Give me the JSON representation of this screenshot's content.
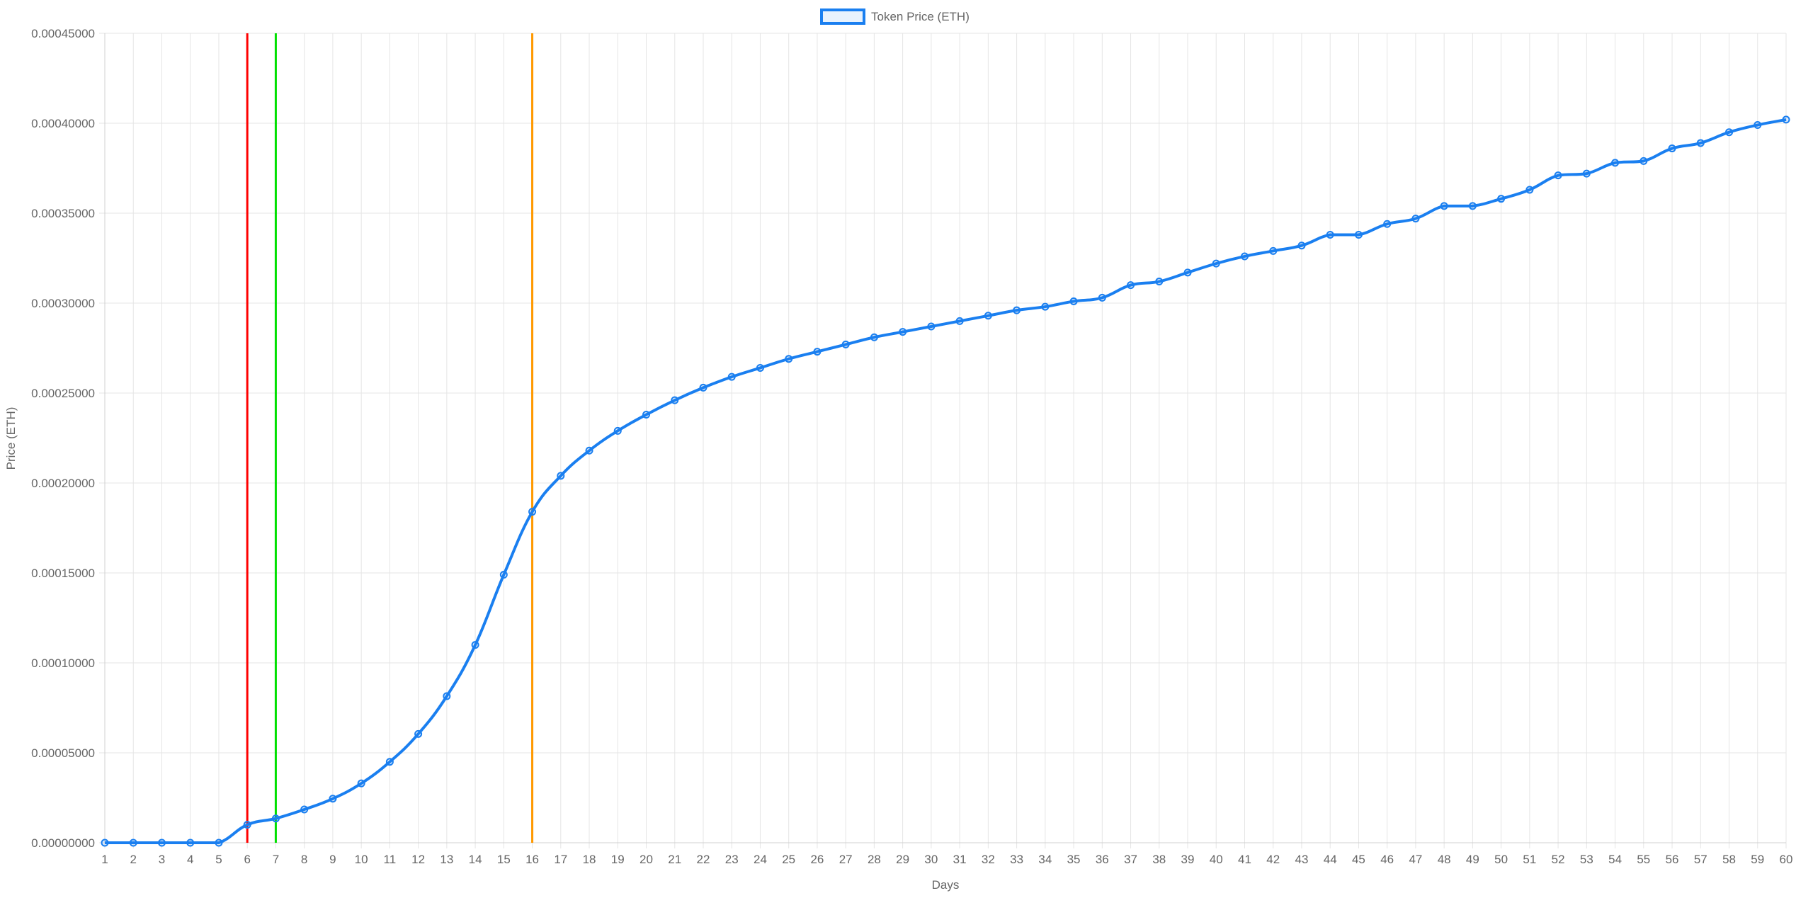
{
  "chart_data": {
    "type": "line",
    "title": "",
    "xlabel": "Days",
    "ylabel": "Price (ETH)",
    "ylim": [
      0,
      0.00045
    ],
    "y_ticks": [
      "0.00000000",
      "0.00005000",
      "0.00010000",
      "0.00015000",
      "0.00020000",
      "0.00025000",
      "0.00030000",
      "0.00035000",
      "0.00040000",
      "0.00045000"
    ],
    "grid": true,
    "legend_position": "top-center",
    "x": [
      1,
      2,
      3,
      4,
      5,
      6,
      7,
      8,
      9,
      10,
      11,
      12,
      13,
      14,
      15,
      16,
      17,
      18,
      19,
      20,
      21,
      22,
      23,
      24,
      25,
      26,
      27,
      28,
      29,
      30,
      31,
      32,
      33,
      34,
      35,
      36,
      37,
      38,
      39,
      40,
      41,
      42,
      43,
      44,
      45,
      46,
      47,
      48,
      49,
      50,
      51,
      52,
      53,
      54,
      55,
      56,
      57,
      58,
      59,
      60
    ],
    "series": [
      {
        "name": "Token Price (ETH)",
        "color": "#1a7ff0",
        "values": [
          0,
          0,
          0,
          0,
          0,
          1e-05,
          1.35e-05,
          1.85e-05,
          2.45e-05,
          3.3e-05,
          4.5e-05,
          6.05e-05,
          8.15e-05,
          0.00011,
          0.000149,
          0.000184,
          0.000204,
          0.000218,
          0.000229,
          0.000238,
          0.000246,
          0.000253,
          0.000259,
          0.000264,
          0.000269,
          0.000273,
          0.000277,
          0.000281,
          0.000284,
          0.000287,
          0.00029,
          0.000293,
          0.000296,
          0.000298,
          0.000301,
          0.000303,
          0.00031,
          0.000312,
          0.000317,
          0.000322,
          0.000326,
          0.000329,
          0.000332,
          0.000338,
          0.000338,
          0.000344,
          0.000347,
          0.000354,
          0.000354,
          0.000358,
          0.000363,
          0.000371,
          0.000372,
          0.000378,
          0.000379,
          0.000386,
          0.000389,
          0.000395,
          0.000399,
          0.000402
        ]
      }
    ],
    "vertical_markers": [
      {
        "x": 6,
        "color": "#ff0000"
      },
      {
        "x": 7,
        "color": "#00e000"
      },
      {
        "x": 16,
        "color": "#ff9900"
      }
    ],
    "grid_color": "#e5e5e5"
  }
}
